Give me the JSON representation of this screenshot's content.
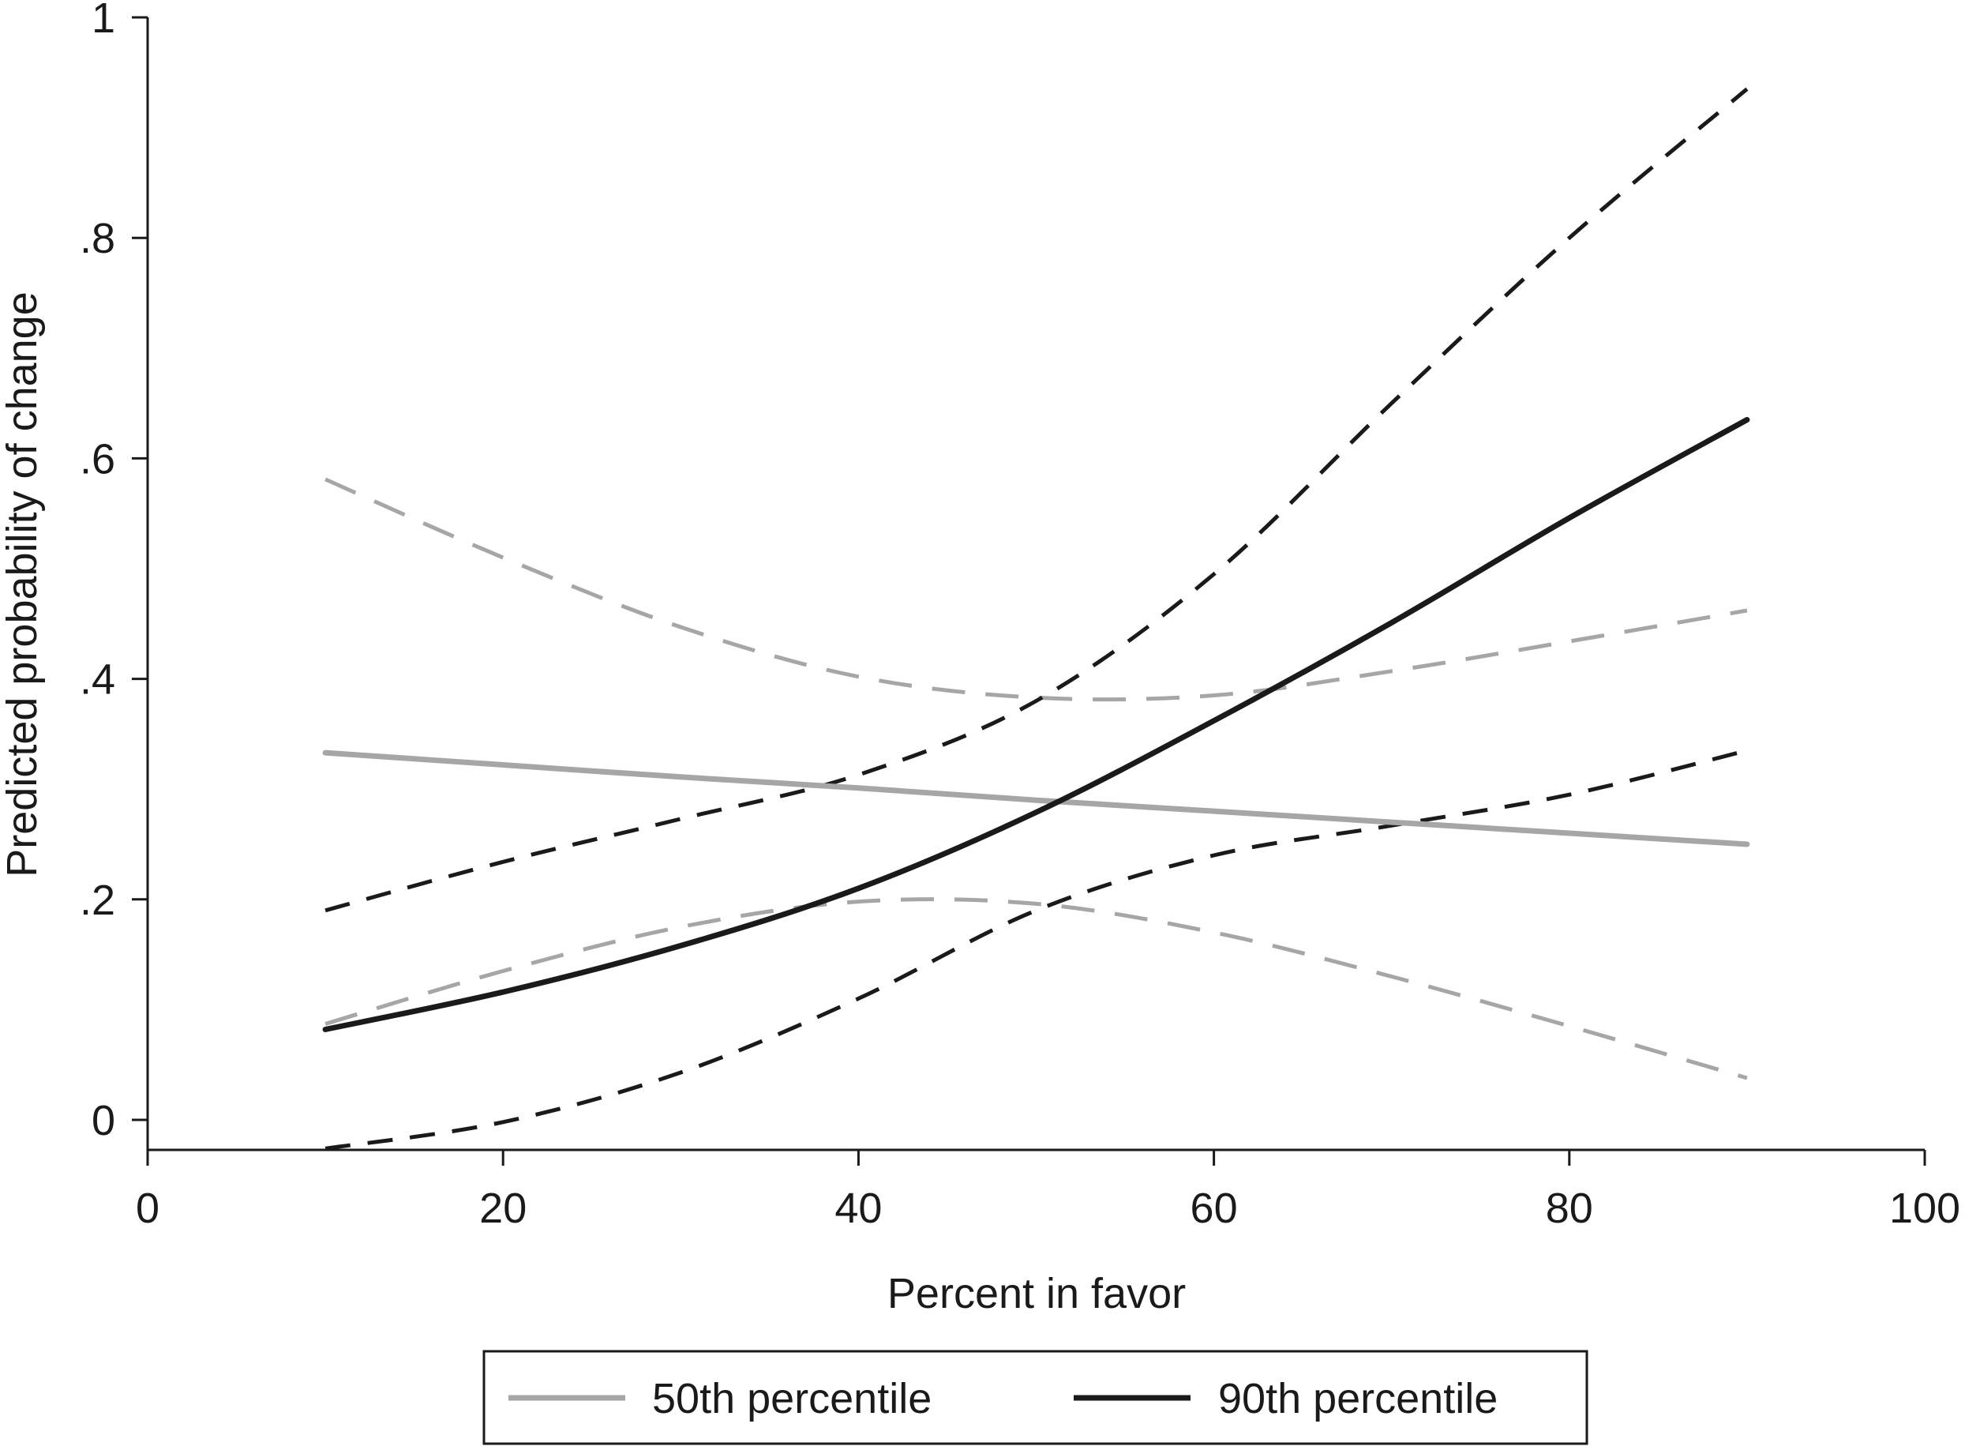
{
  "chart_data": {
    "type": "line",
    "xlabel": "Percent in favor",
    "ylabel": "Predicted probability of change",
    "xlim": [
      0,
      100
    ],
    "ylim": [
      -0.026,
      1.0
    ],
    "x_ticks": [
      0,
      20,
      40,
      60,
      80,
      100
    ],
    "y_ticks": [
      0,
      0.2,
      0.4,
      0.6,
      0.8,
      1.0
    ],
    "x_tick_labels": [
      "0",
      "20",
      "40",
      "60",
      "80",
      "100"
    ],
    "y_tick_labels": [
      "0",
      ".2",
      ".4",
      ".6",
      ".8",
      "1"
    ],
    "grid": false,
    "legend_position": "bottom",
    "series": [
      {
        "name": "50th percentile",
        "color": "#a6a6a6",
        "x": [
          10,
          20,
          30,
          40,
          50,
          60,
          70,
          80,
          90
        ],
        "values": [
          0.333,
          0.322,
          0.311,
          0.301,
          0.29,
          0.28,
          0.27,
          0.26,
          0.25
        ],
        "ci_lower": [
          0.087,
          0.135,
          0.175,
          0.198,
          0.196,
          0.17,
          0.13,
          0.085,
          0.038
        ],
        "ci_upper": [
          0.581,
          0.51,
          0.447,
          0.402,
          0.383,
          0.385,
          0.407,
          0.434,
          0.462
        ]
      },
      {
        "name": "90th percentile",
        "color": "#1a1a1a",
        "x": [
          10,
          20,
          30,
          40,
          50,
          60,
          70,
          80,
          90
        ],
        "values": [
          0.082,
          0.116,
          0.158,
          0.21,
          0.279,
          0.362,
          0.451,
          0.546,
          0.635
        ],
        "ci_lower": [
          -0.026,
          -0.002,
          0.043,
          0.11,
          0.19,
          0.24,
          0.267,
          0.295,
          0.335
        ],
        "ci_upper": [
          0.19,
          0.234,
          0.273,
          0.313,
          0.38,
          0.495,
          0.65,
          0.8,
          0.935
        ]
      }
    ]
  }
}
